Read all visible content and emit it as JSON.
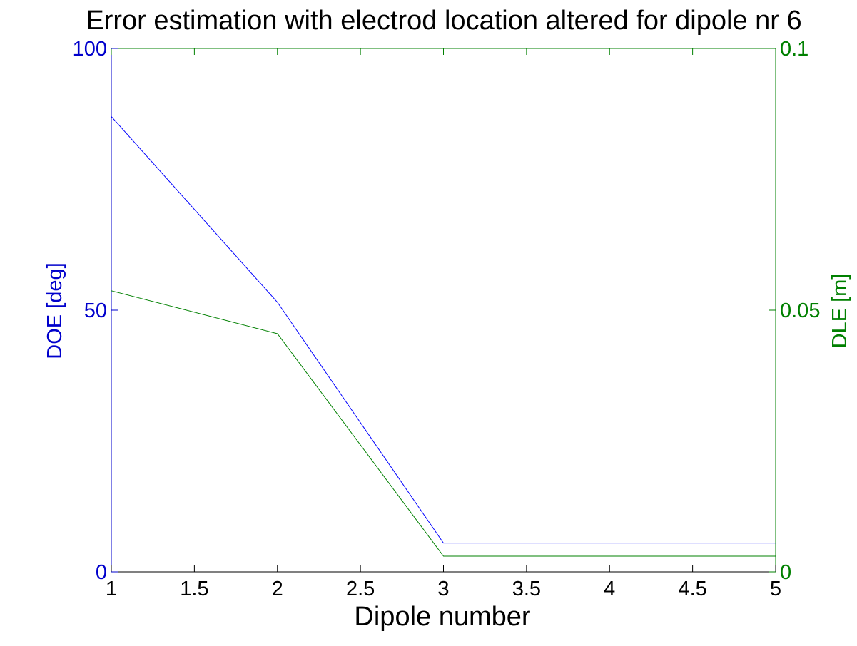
{
  "chart_data": {
    "type": "line",
    "title": "Error estimation with electrod location altered for dipole nr 6",
    "xlabel": "Dipole number",
    "ylabel_left": "DOE [deg]",
    "ylabel_right": "DLE [m]",
    "x": [
      1,
      2,
      3,
      4,
      5
    ],
    "xlim": [
      1,
      5
    ],
    "xticks": [
      "1",
      "1.5",
      "2",
      "2.5",
      "3",
      "3.5",
      "4",
      "4.5",
      "5"
    ],
    "ylim_left": [
      0,
      100
    ],
    "yticks_left": [
      "0",
      "50",
      "100"
    ],
    "ylim_right": [
      0,
      0.1
    ],
    "yticks_right": [
      "0",
      "0.05",
      "0.1"
    ],
    "grid": false,
    "series": [
      {
        "axis": "left",
        "color": "#0000ff",
        "values": [
          87,
          51.5,
          5.5,
          5.5,
          5.5
        ]
      },
      {
        "axis": "right",
        "color": "#008000",
        "values": [
          0.0537,
          0.0455,
          0.003,
          0.003,
          0.003
        ]
      }
    ],
    "colors": {
      "axis_left": "#0000cc",
      "axis_right": "#008000",
      "axis_bottom": "#000000"
    }
  }
}
